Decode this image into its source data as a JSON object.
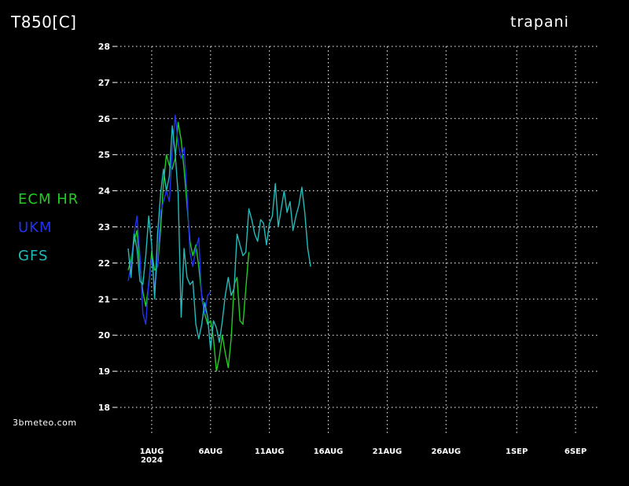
{
  "header": {
    "title": "T850[C]",
    "location": "trapani"
  },
  "legend": [
    {
      "label": "ECM HR",
      "color": "#22cc22"
    },
    {
      "label": "UKM",
      "color": "#2233ee"
    },
    {
      "label": "GFS",
      "color": "#22bbbb"
    }
  ],
  "credit": "3bmeteo.com",
  "chart_data": {
    "type": "line",
    "ylim": [
      18,
      28
    ],
    "yticks": [
      18,
      19,
      20,
      21,
      22,
      23,
      24,
      25,
      26,
      27,
      28
    ],
    "xlim": [
      "2024-07-29T00:00",
      "2024-09-08T00:00"
    ],
    "xticks": [
      {
        "date": "2024-08-01",
        "label": "1AUG",
        "sublabel": "2024"
      },
      {
        "date": "2024-08-06",
        "label": "6AUG",
        "sublabel": ""
      },
      {
        "date": "2024-08-11",
        "label": "11AUG",
        "sublabel": ""
      },
      {
        "date": "2024-08-16",
        "label": "16AUG",
        "sublabel": ""
      },
      {
        "date": "2024-08-21",
        "label": "21AUG",
        "sublabel": ""
      },
      {
        "date": "2024-08-26",
        "label": "26AUG",
        "sublabel": ""
      },
      {
        "date": "2024-09-01",
        "label": "1SEP",
        "sublabel": ""
      },
      {
        "date": "2024-09-06",
        "label": "6SEP",
        "sublabel": ""
      }
    ],
    "grid": true,
    "series": [
      {
        "name": "ECM HR",
        "color": "#22cc22",
        "points": [
          [
            "2024-07-30T00:00",
            21.8
          ],
          [
            "2024-07-30T06:00",
            22.1
          ],
          [
            "2024-07-30T12:00",
            22.6
          ],
          [
            "2024-07-30T18:00",
            22.9
          ],
          [
            "2024-07-31T00:00",
            21.9
          ],
          [
            "2024-07-31T06:00",
            21.2
          ],
          [
            "2024-07-31T12:00",
            20.8
          ],
          [
            "2024-07-31T18:00",
            21.4
          ],
          [
            "2024-08-01T00:00",
            22.3
          ],
          [
            "2024-08-01T06:00",
            21.8
          ],
          [
            "2024-08-01T12:00",
            21.9
          ],
          [
            "2024-08-01T18:00",
            22.9
          ],
          [
            "2024-08-02T00:00",
            24.2
          ],
          [
            "2024-08-02T06:00",
            25.0
          ],
          [
            "2024-08-02T12:00",
            24.7
          ],
          [
            "2024-08-02T18:00",
            24.6
          ],
          [
            "2024-08-03T00:00",
            24.9
          ],
          [
            "2024-08-03T06:00",
            25.9
          ],
          [
            "2024-08-03T12:00",
            25.4
          ],
          [
            "2024-08-03T18:00",
            24.6
          ],
          [
            "2024-08-04T00:00",
            23.6
          ],
          [
            "2024-08-04T06:00",
            22.6
          ],
          [
            "2024-08-04T12:00",
            22.2
          ],
          [
            "2024-08-04T18:00",
            22.5
          ],
          [
            "2024-08-05T00:00",
            21.9
          ],
          [
            "2024-08-05T06:00",
            21.1
          ],
          [
            "2024-08-05T12:00",
            20.6
          ],
          [
            "2024-08-05T18:00",
            20.3
          ],
          [
            "2024-08-06T00:00",
            20.4
          ],
          [
            "2024-08-06T06:00",
            19.9
          ],
          [
            "2024-08-06T12:00",
            19.0
          ],
          [
            "2024-08-06T18:00",
            19.4
          ],
          [
            "2024-08-07T00:00",
            20.0
          ],
          [
            "2024-08-07T06:00",
            19.5
          ],
          [
            "2024-08-07T12:00",
            19.1
          ],
          [
            "2024-08-07T18:00",
            19.9
          ],
          [
            "2024-08-08T00:00",
            21.4
          ],
          [
            "2024-08-08T06:00",
            21.6
          ],
          [
            "2024-08-08T12:00",
            20.4
          ],
          [
            "2024-08-08T18:00",
            20.3
          ],
          [
            "2024-08-09T00:00",
            21.3
          ],
          [
            "2024-08-09T06:00",
            22.3
          ]
        ]
      },
      {
        "name": "UKM",
        "color": "#2233ee",
        "points": [
          [
            "2024-07-30T00:00",
            21.5
          ],
          [
            "2024-07-30T06:00",
            21.9
          ],
          [
            "2024-07-30T12:00",
            22.8
          ],
          [
            "2024-07-30T18:00",
            23.3
          ],
          [
            "2024-07-31T00:00",
            22.2
          ],
          [
            "2024-07-31T06:00",
            20.6
          ],
          [
            "2024-07-31T12:00",
            20.3
          ],
          [
            "2024-07-31T18:00",
            21.5
          ],
          [
            "2024-08-01T00:00",
            22.1
          ],
          [
            "2024-08-01T06:00",
            21.3
          ],
          [
            "2024-08-01T12:00",
            22.0
          ],
          [
            "2024-08-01T18:00",
            23.4
          ],
          [
            "2024-08-02T00:00",
            23.7
          ],
          [
            "2024-08-02T06:00",
            24.0
          ],
          [
            "2024-08-02T12:00",
            23.7
          ],
          [
            "2024-08-02T18:00",
            25.1
          ],
          [
            "2024-08-03T00:00",
            26.1
          ],
          [
            "2024-08-03T06:00",
            25.3
          ],
          [
            "2024-08-03T12:00",
            24.9
          ],
          [
            "2024-08-03T18:00",
            25.2
          ],
          [
            "2024-08-04T00:00",
            23.9
          ],
          [
            "2024-08-04T06:00",
            22.3
          ],
          [
            "2024-08-04T12:00",
            21.9
          ],
          [
            "2024-08-04T18:00",
            22.4
          ],
          [
            "2024-08-05T00:00",
            22.7
          ],
          [
            "2024-08-05T06:00",
            21.0
          ],
          [
            "2024-08-05T12:00",
            20.6
          ],
          [
            "2024-08-05T18:00",
            21.1
          ],
          [
            "2024-08-06T00:00",
            21.2
          ]
        ]
      },
      {
        "name": "GFS",
        "color": "#22bbbb",
        "points": [
          [
            "2024-07-30T00:00",
            22.4
          ],
          [
            "2024-07-30T06:00",
            21.6
          ],
          [
            "2024-07-30T12:00",
            22.8
          ],
          [
            "2024-07-30T18:00",
            22.4
          ],
          [
            "2024-07-31T00:00",
            21.5
          ],
          [
            "2024-07-31T06:00",
            21.4
          ],
          [
            "2024-07-31T12:00",
            22.2
          ],
          [
            "2024-07-31T18:00",
            23.3
          ],
          [
            "2024-08-01T00:00",
            22.5
          ],
          [
            "2024-08-01T06:00",
            21.0
          ],
          [
            "2024-08-01T12:00",
            22.8
          ],
          [
            "2024-08-01T18:00",
            23.9
          ],
          [
            "2024-08-02T00:00",
            24.6
          ],
          [
            "2024-08-02T06:00",
            24.0
          ],
          [
            "2024-08-02T12:00",
            24.4
          ],
          [
            "2024-08-02T18:00",
            25.8
          ],
          [
            "2024-08-03T00:00",
            25.0
          ],
          [
            "2024-08-03T06:00",
            23.9
          ],
          [
            "2024-08-03T12:00",
            20.5
          ],
          [
            "2024-08-03T18:00",
            22.4
          ],
          [
            "2024-08-04T00:00",
            21.6
          ],
          [
            "2024-08-04T06:00",
            21.4
          ],
          [
            "2024-08-04T12:00",
            21.5
          ],
          [
            "2024-08-04T18:00",
            20.3
          ],
          [
            "2024-08-05T00:00",
            19.9
          ],
          [
            "2024-08-05T06:00",
            20.3
          ],
          [
            "2024-08-05T12:00",
            20.9
          ],
          [
            "2024-08-05T18:00",
            20.5
          ],
          [
            "2024-08-06T00:00",
            19.6
          ],
          [
            "2024-08-06T06:00",
            20.4
          ],
          [
            "2024-08-06T12:00",
            20.2
          ],
          [
            "2024-08-06T18:00",
            19.8
          ],
          [
            "2024-08-07T00:00",
            20.4
          ],
          [
            "2024-08-07T06:00",
            21.1
          ],
          [
            "2024-08-07T12:00",
            21.6
          ],
          [
            "2024-08-07T18:00",
            21.1
          ],
          [
            "2024-08-08T00:00",
            21.3
          ],
          [
            "2024-08-08T06:00",
            22.8
          ],
          [
            "2024-08-08T12:00",
            22.5
          ],
          [
            "2024-08-08T18:00",
            22.2
          ],
          [
            "2024-08-09T00:00",
            22.3
          ],
          [
            "2024-08-09T06:00",
            23.5
          ],
          [
            "2024-08-09T12:00",
            23.2
          ],
          [
            "2024-08-09T18:00",
            22.8
          ],
          [
            "2024-08-10T00:00",
            22.6
          ],
          [
            "2024-08-10T06:00",
            23.2
          ],
          [
            "2024-08-10T12:00",
            23.1
          ],
          [
            "2024-08-10T18:00",
            22.5
          ],
          [
            "2024-08-11T00:00",
            23.1
          ],
          [
            "2024-08-11T06:00",
            23.3
          ],
          [
            "2024-08-11T12:00",
            24.2
          ],
          [
            "2024-08-11T18:00",
            23.0
          ],
          [
            "2024-08-12T00:00",
            23.5
          ],
          [
            "2024-08-12T06:00",
            24.0
          ],
          [
            "2024-08-12T12:00",
            23.4
          ],
          [
            "2024-08-12T18:00",
            23.7
          ],
          [
            "2024-08-13T00:00",
            22.9
          ],
          [
            "2024-08-13T06:00",
            23.3
          ],
          [
            "2024-08-13T12:00",
            23.6
          ],
          [
            "2024-08-13T18:00",
            24.1
          ],
          [
            "2024-08-14T00:00",
            23.4
          ],
          [
            "2024-08-14T06:00",
            22.4
          ],
          [
            "2024-08-14T12:00",
            21.9
          ]
        ]
      }
    ]
  }
}
